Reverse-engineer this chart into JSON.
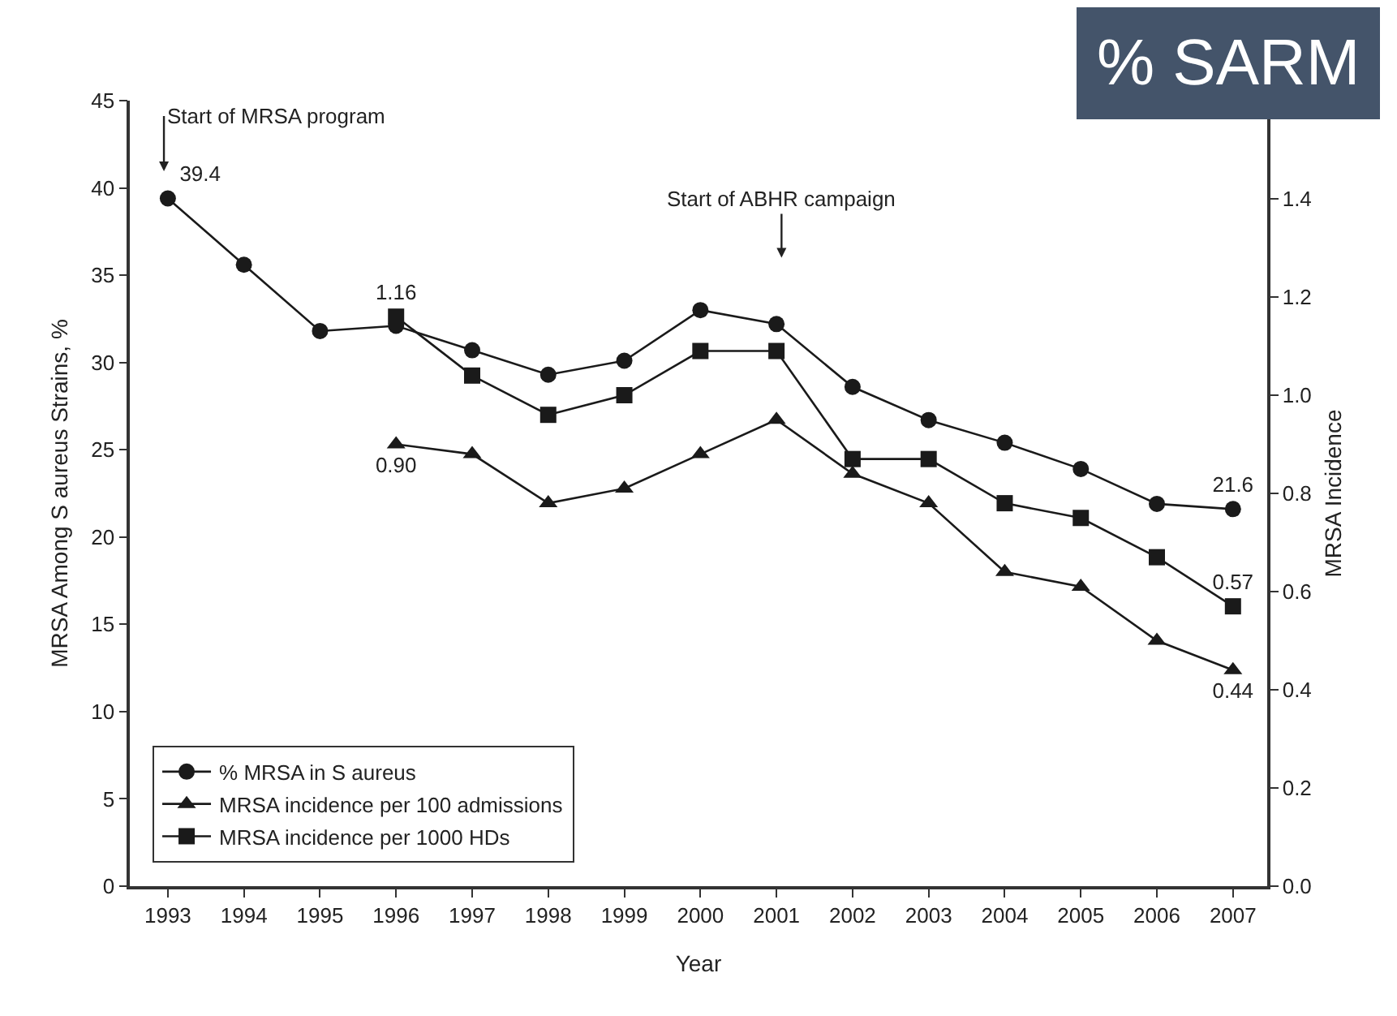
{
  "chart_data": {
    "type": "line",
    "xlabel": "Year",
    "ylabel": "MRSA Among S aureus Strains, %",
    "y2label": "MRSA Incidence",
    "x": [
      1993,
      1994,
      1995,
      1996,
      1997,
      1998,
      1999,
      2000,
      2001,
      2002,
      2003,
      2004,
      2005,
      2006,
      2007
    ],
    "series": [
      {
        "name": "% MRSA in S aureus",
        "color": "#1a1a1a",
        "marker": "circle",
        "values": [
          39.4,
          35.6,
          31.8,
          32.1,
          30.7,
          29.3,
          30.1,
          33.0,
          32.2,
          28.6,
          26.7,
          25.4,
          23.9,
          21.9,
          21.6
        ],
        "value_labels": [
          "39.4",
          null,
          null,
          null,
          null,
          null,
          null,
          null,
          null,
          null,
          null,
          null,
          null,
          null,
          "21.6"
        ]
      },
      {
        "name": "MRSA incidence per 100 admissions",
        "color": "#1a1a1a",
        "marker": "triangle",
        "axis": "y2",
        "values": [
          null,
          null,
          null,
          0.9,
          0.88,
          0.78,
          0.81,
          0.88,
          0.95,
          0.84,
          0.78,
          0.64,
          0.61,
          0.5,
          0.44
        ],
        "value_labels": [
          null,
          null,
          null,
          "0.90",
          null,
          null,
          null,
          null,
          null,
          null,
          null,
          null,
          null,
          null,
          "0.44"
        ]
      },
      {
        "name": "MRSA incidence per 1000 HDs",
        "color": "#1a1a1a",
        "marker": "square",
        "axis": "y2",
        "values": [
          null,
          null,
          null,
          1.16,
          1.04,
          0.96,
          1.0,
          1.09,
          1.09,
          0.87,
          0.87,
          0.78,
          0.75,
          0.67,
          0.57
        ],
        "value_labels": [
          null,
          null,
          null,
          "1.16",
          null,
          null,
          null,
          null,
          null,
          null,
          null,
          null,
          null,
          null,
          "0.57"
        ]
      }
    ],
    "xlim": [
      1992.5,
      2007.45
    ],
    "xticks": [
      1993,
      1994,
      1995,
      1996,
      1997,
      1998,
      1999,
      2000,
      2001,
      2002,
      2003,
      2004,
      2005,
      2006,
      2007
    ],
    "ylim": [
      0,
      45
    ],
    "yticks": [
      0,
      5,
      10,
      15,
      20,
      25,
      30,
      35,
      40,
      45
    ],
    "y2lim": [
      0,
      1.6
    ],
    "y2ticks": [
      {
        "value": 0,
        "label": "0.0"
      },
      0.2,
      0.4,
      0.6,
      0.8,
      {
        "value": 1,
        "label": "1.0"
      },
      1.2,
      1.4
    ],
    "annotations": [
      "Start of MRSA program",
      "Start of ABHR campaign",
      "% SARM"
    ],
    "grid": false,
    "legend": "bottom left",
    "line_style": "solid"
  }
}
